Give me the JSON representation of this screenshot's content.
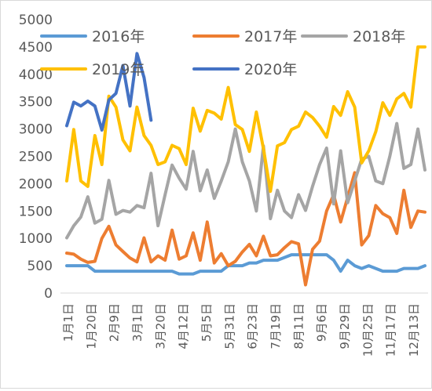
{
  "chart_data": {
    "type": "line",
    "title": "",
    "xlabel": "",
    "ylabel": "",
    "ylim": [
      0,
      5000
    ],
    "yticks": [
      0,
      500,
      1000,
      1500,
      2000,
      2500,
      3000,
      3500,
      4000,
      4500,
      5000
    ],
    "grid": false,
    "legend_position": "top",
    "x_tick_labels": [
      "1月1日",
      "1月20日",
      "2月9日",
      "3月1日",
      "3月20日",
      "4月12日",
      "5月5日",
      "5月31日",
      "6月23日",
      "7月19日",
      "8月11日",
      "9月6日",
      "9月29日",
      "10月25日",
      "11月17日",
      "12月13日"
    ],
    "n_points": 52,
    "series": [
      {
        "name": "2016年",
        "color": "#5B9BD5",
        "values": [
          500,
          500,
          500,
          500,
          400,
          400,
          400,
          400,
          400,
          400,
          400,
          400,
          400,
          400,
          400,
          400,
          350,
          350,
          350,
          400,
          400,
          400,
          400,
          500,
          500,
          500,
          550,
          550,
          600,
          600,
          600,
          650,
          700,
          700,
          700,
          700,
          700,
          700,
          600,
          400,
          600,
          500,
          450,
          500,
          450,
          400,
          400,
          400,
          450,
          450,
          450,
          500
        ]
      },
      {
        "name": "2017年",
        "color": "#ED7D31",
        "values": [
          730,
          710,
          620,
          560,
          580,
          1000,
          1220,
          880,
          760,
          640,
          570,
          1010,
          570,
          680,
          600,
          1150,
          620,
          680,
          1100,
          600,
          1300,
          550,
          720,
          500,
          580,
          750,
          890,
          680,
          1040,
          680,
          700,
          830,
          940,
          900,
          150,
          800,
          950,
          1500,
          1800,
          1300,
          1750,
          2200,
          880,
          1050,
          1600,
          1450,
          1380,
          1090,
          1880,
          1200,
          1500,
          1480
        ]
      },
      {
        "name": "2018年",
        "color": "#A5A5A5",
        "values": [
          1010,
          1230,
          1390,
          1760,
          1280,
          1350,
          2060,
          1440,
          1510,
          1480,
          1600,
          1560,
          2190,
          1230,
          1800,
          2340,
          2100,
          1900,
          2590,
          1870,
          2250,
          1730,
          2050,
          2400,
          3000,
          2400,
          2050,
          1500,
          2690,
          1360,
          1880,
          1500,
          1380,
          1800,
          1510,
          1950,
          2350,
          2650,
          1630,
          2600,
          1650,
          2050,
          2450,
          2500,
          2050,
          2000,
          2500,
          3100,
          2280,
          2350,
          3000,
          2250
        ]
      },
      {
        "name": "2019年",
        "color": "#FFC000",
        "values": [
          2050,
          2990,
          2050,
          1950,
          2880,
          2350,
          3600,
          3400,
          2800,
          2600,
          3400,
          2880,
          2700,
          2350,
          2400,
          2700,
          2640,
          2350,
          3380,
          2960,
          3340,
          3290,
          3180,
          3760,
          3080,
          2990,
          2590,
          3310,
          2640,
          1860,
          2690,
          2750,
          2990,
          3050,
          3310,
          3210,
          3050,
          2850,
          3410,
          3250,
          3680,
          3400,
          2380,
          2600,
          2950,
          3480,
          3250,
          3550,
          3650,
          3400,
          4500,
          4500
        ]
      },
      {
        "name": "2020年",
        "color": "#4472C4",
        "values": [
          3060,
          3490,
          3420,
          3510,
          3420,
          2980,
          3530,
          3650,
          4160,
          3420,
          4380,
          3940,
          3160
        ]
      }
    ]
  }
}
